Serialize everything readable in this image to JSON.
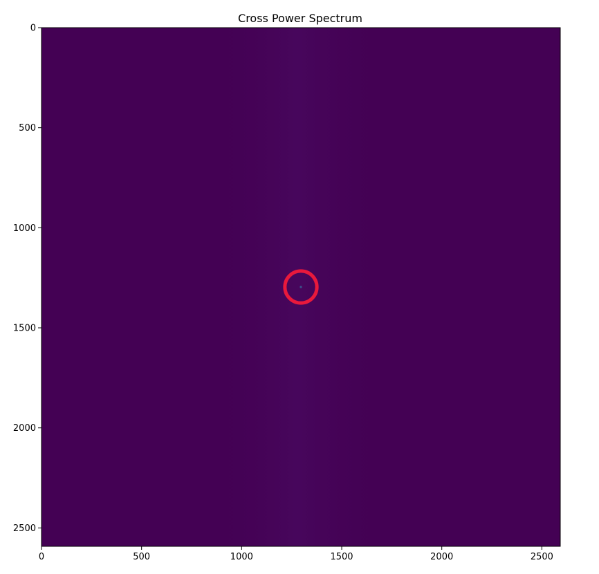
{
  "chart_data": {
    "type": "heatmap",
    "title": "Cross Power Spectrum",
    "xlabel": "",
    "ylabel": "",
    "xlim": [
      0,
      2592
    ],
    "ylim": [
      2592,
      0
    ],
    "x_ticks": [
      0,
      500,
      1000,
      1500,
      2000,
      2500
    ],
    "y_ticks": [
      0,
      500,
      1000,
      1500,
      2000,
      2500
    ],
    "x_tick_labels": [
      "0",
      "500",
      "1000",
      "1500",
      "2000",
      "2500"
    ],
    "y_tick_labels": [
      "0",
      "500",
      "1000",
      "1500",
      "2000",
      "2500"
    ],
    "grid": false,
    "colormap": "viridis",
    "background_color": "#440154",
    "peak": {
      "x": 1296,
      "y": 1296,
      "color": "#3b528b"
    },
    "annotation": {
      "shape": "circle",
      "x": 1296,
      "y": 1296,
      "radius": 80,
      "color": "#e8193c"
    }
  }
}
